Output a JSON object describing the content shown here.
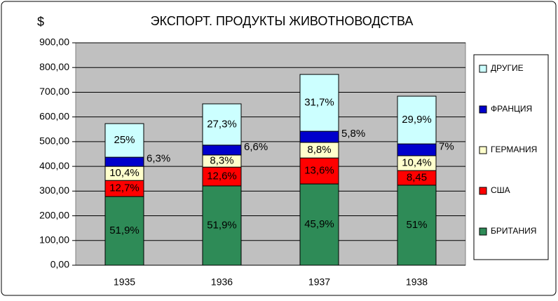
{
  "chart_data": {
    "type": "stacked_bar",
    "title": "ЭКСПОРТ. ПРОДУКТЫ ЖИВОТНОВОДСТВА",
    "y_label": "$",
    "categories": [
      "1935",
      "1936",
      "1937",
      "1938"
    ],
    "series": [
      {
        "name": "БРИТАНИЯ",
        "color": "#2e8b57",
        "values": [
          278,
          321,
          329,
          324
        ],
        "share_labels": [
          "51,9%",
          "51,9%",
          "45,9%",
          "51%"
        ]
      },
      {
        "name": "США",
        "color": "#ff0000",
        "values": [
          65,
          76,
          105,
          59
        ],
        "share_labels": [
          "12,7%",
          "12,6%",
          "13,6%",
          "8,45"
        ]
      },
      {
        "name": "ГЕРМАНИЯ",
        "color": "#ffffcc",
        "values": [
          57,
          49,
          63,
          60
        ],
        "share_labels": [
          "10,4%",
          "8,3%",
          "8,8%",
          "10,4%"
        ]
      },
      {
        "name": "ФРАНЦИЯ",
        "color": "#0000cc",
        "values": [
          37,
          40,
          45,
          48
        ],
        "share_labels": [
          "6,3%",
          "6,6%",
          "5,8%",
          "7%"
        ]
      },
      {
        "name": "ДРУГИЕ",
        "color": "#ccffff",
        "values": [
          136,
          167,
          230,
          193
        ],
        "share_labels": [
          "25%",
          "27,3%",
          "31,7%",
          "29,9%"
        ]
      }
    ],
    "ylim": [
      0,
      900
    ],
    "yticks": [
      {
        "value": 0,
        "label": "0,00"
      },
      {
        "value": 100,
        "label": "100,00"
      },
      {
        "value": 200,
        "label": "200,00"
      },
      {
        "value": 300,
        "label": "300,00"
      },
      {
        "value": 400,
        "label": "400,00"
      },
      {
        "value": 500,
        "label": "500,00"
      },
      {
        "value": 600,
        "label": "600,00"
      },
      {
        "value": 700,
        "label": "700,00"
      },
      {
        "value": 800,
        "label": "800,00"
      },
      {
        "value": 900,
        "label": "900,00"
      }
    ],
    "grid": true,
    "legend": "right"
  }
}
